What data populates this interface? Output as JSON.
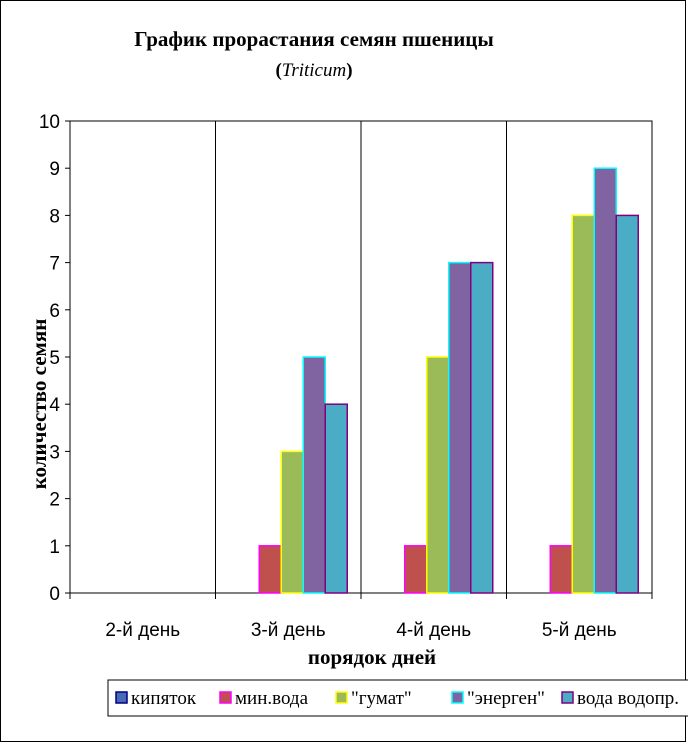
{
  "chart_data": {
    "type": "bar",
    "title": "График прорастания семян пшеницы",
    "subtitle_open": "(",
    "subtitle_italic": "Triticum",
    "subtitle_close": ")",
    "xlabel": "порядок дней",
    "ylabel": "количество семян",
    "categories": [
      "2-й день",
      "3-й день",
      "4-й день",
      "5-й день"
    ],
    "ylim": [
      0,
      10
    ],
    "yticks": [
      "0",
      "1",
      "2",
      "3",
      "4",
      "5",
      "6",
      "7",
      "8",
      "9",
      "10"
    ],
    "grid": "vertical",
    "legend_position": "bottom",
    "series": [
      {
        "name": "кипяток",
        "values": [
          0,
          0,
          0,
          0
        ],
        "color": "#4a6ab8",
        "border": "#000080"
      },
      {
        "name": "мин.вода",
        "values": [
          0,
          1,
          1,
          1
        ],
        "color": "#c0504d",
        "border": "#ff00ff"
      },
      {
        "name": "\"гумат\"",
        "values": [
          0,
          3,
          5,
          8
        ],
        "color": "#9bbb59",
        "border": "#ffff00"
      },
      {
        "name": "\"энерген\"",
        "values": [
          0,
          5,
          7,
          9
        ],
        "color": "#8064a2",
        "border": "#00ffff"
      },
      {
        "name": "вода водопр.",
        "values": [
          0,
          4,
          7,
          8
        ],
        "color": "#4bacc6",
        "border": "#800080"
      }
    ]
  }
}
